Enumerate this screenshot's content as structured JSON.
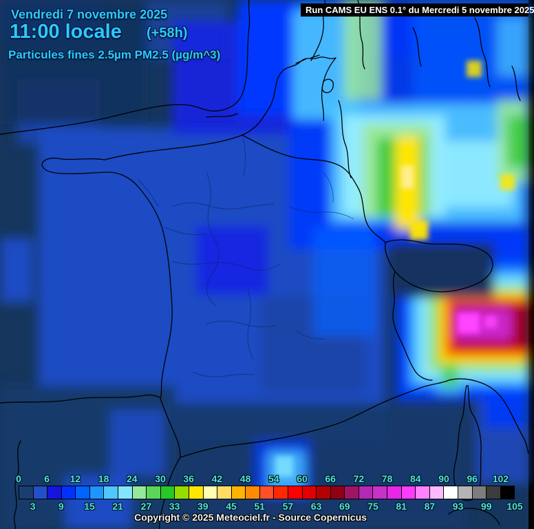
{
  "header": {
    "date": "Vendredi 7 novembre 2025",
    "time": "11:00 locale",
    "run_offset": "(+58h)",
    "parameter": "Particules fines 2.5µm PM2.5 (µg/m^3)",
    "text_color": "#2EC9FF"
  },
  "run_banner": {
    "text": "Run CAMS EU ENS 0.1° du Mercredi 5 novembre 2025",
    "bg": "#000000",
    "color": "#FFFFFF"
  },
  "legend": {
    "min": 0,
    "max": 105,
    "step": 3,
    "label_color": "#52E5D4",
    "labels_top": [
      "0",
      "6",
      "12",
      "18",
      "24",
      "30",
      "36",
      "42",
      "48",
      "54",
      "60",
      "66",
      "72",
      "78",
      "84",
      "90",
      "96",
      "102"
    ],
    "labels_bottom": [
      "3",
      "9",
      "15",
      "21",
      "27",
      "33",
      "39",
      "45",
      "51",
      "57",
      "63",
      "69",
      "75",
      "81",
      "87",
      "93",
      "99",
      "105"
    ],
    "cell_colors": [
      "#1C3E6E",
      "#2350C8",
      "#1414DC",
      "#0032FF",
      "#0064FF",
      "#1E96FF",
      "#50C8FF",
      "#82E6FF",
      "#96E89C",
      "#5AD75A",
      "#28C828",
      "#96DC00",
      "#FFE600",
      "#FFFFB4",
      "#FFDC64",
      "#FFB400",
      "#FF8C00",
      "#FF5028",
      "#FF2800",
      "#FF0000",
      "#E10000",
      "#B40000",
      "#910014",
      "#A01464",
      "#B428B4",
      "#C832C8",
      "#E628E6",
      "#FF3CFF",
      "#FF82FF",
      "#FFB9FF",
      "#FFFFFF",
      "#B4B4B4",
      "#7D7D7D",
      "#3C3C3C",
      "#000000"
    ]
  },
  "footer": {
    "copyright": "Copyright © 2025 Meteociel.fr - Source Copernicus"
  },
  "map_palette": {
    "sea_dark_navy": "#16365E",
    "land_medium_blue": "#1C4BC3",
    "vivid_blue": "#1A24E4",
    "bright_blue": "#0038FF",
    "azure": "#0064FF",
    "sky_cyan": "#50C8FF",
    "light_cyan": "#93ECFF",
    "pale_green": "#9CE89C",
    "green": "#3CCC3C",
    "yellow": "#FFE600",
    "orange": "#FF9600",
    "red": "#E80000",
    "dark_red": "#A50008",
    "magenta": "#CC28CC",
    "bright_magenta": "#FF44FF",
    "coastline": "#000000"
  }
}
